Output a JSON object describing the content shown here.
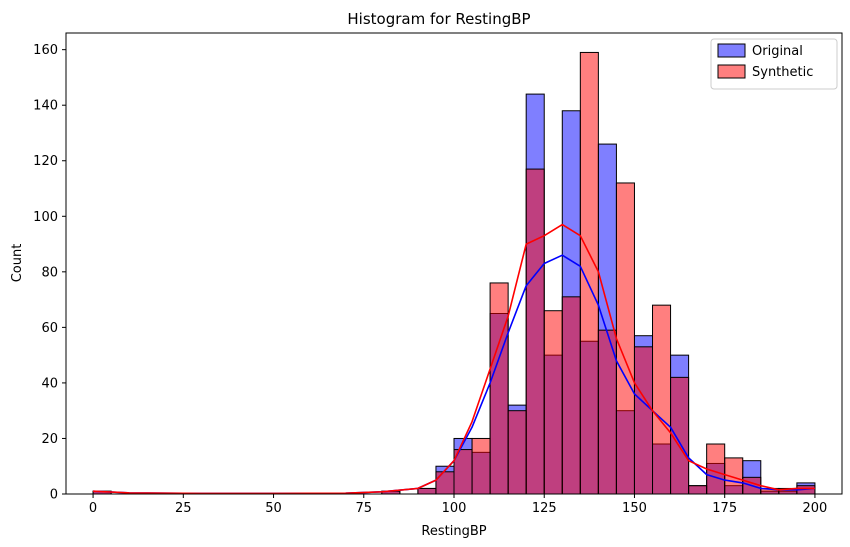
{
  "chart_data": {
    "type": "bar",
    "title": "Histogram for RestingBP",
    "xlabel": "RestingBP",
    "ylabel": "Count",
    "xlim": [
      -7.5,
      207.5
    ],
    "ylim": [
      0,
      166
    ],
    "xticks": [
      0,
      25,
      50,
      75,
      100,
      125,
      150,
      175,
      200
    ],
    "yticks": [
      0,
      20,
      40,
      60,
      80,
      100,
      120,
      140,
      160
    ],
    "bin_width": 5,
    "legend_position": "top-right",
    "colors": {
      "original": "#0000ff",
      "synthetic": "#ff0000",
      "overlap": "#c0305a",
      "edge": "#000000"
    },
    "series": [
      {
        "name": "Original",
        "bins": [
          {
            "x": 0,
            "count": 1
          },
          {
            "x": 80,
            "count": 1
          },
          {
            "x": 90,
            "count": 2
          },
          {
            "x": 95,
            "count": 10
          },
          {
            "x": 100,
            "count": 20
          },
          {
            "x": 105,
            "count": 15
          },
          {
            "x": 110,
            "count": 65
          },
          {
            "x": 115,
            "count": 32
          },
          {
            "x": 120,
            "count": 144
          },
          {
            "x": 125,
            "count": 50
          },
          {
            "x": 130,
            "count": 138
          },
          {
            "x": 135,
            "count": 55
          },
          {
            "x": 140,
            "count": 126
          },
          {
            "x": 145,
            "count": 30
          },
          {
            "x": 150,
            "count": 57
          },
          {
            "x": 155,
            "count": 18
          },
          {
            "x": 160,
            "count": 50
          },
          {
            "x": 165,
            "count": 3
          },
          {
            "x": 170,
            "count": 11
          },
          {
            "x": 175,
            "count": 3
          },
          {
            "x": 180,
            "count": 12
          },
          {
            "x": 185,
            "count": 1
          },
          {
            "x": 190,
            "count": 1
          },
          {
            "x": 195,
            "count": 4
          }
        ],
        "kde": [
          [
            0,
            1
          ],
          [
            10,
            0.4
          ],
          [
            30,
            0.2
          ],
          [
            50,
            0.2
          ],
          [
            70,
            0.3
          ],
          [
            80,
            0.8
          ],
          [
            90,
            2
          ],
          [
            95,
            5
          ],
          [
            100,
            12
          ],
          [
            105,
            24
          ],
          [
            110,
            40
          ],
          [
            115,
            58
          ],
          [
            120,
            75
          ],
          [
            125,
            83
          ],
          [
            130,
            86
          ],
          [
            135,
            82
          ],
          [
            140,
            68
          ],
          [
            145,
            48
          ],
          [
            150,
            36
          ],
          [
            155,
            30
          ],
          [
            160,
            24
          ],
          [
            165,
            13
          ],
          [
            170,
            7
          ],
          [
            175,
            5
          ],
          [
            180,
            4
          ],
          [
            185,
            2
          ],
          [
            190,
            1.5
          ],
          [
            195,
            1.5
          ],
          [
            200,
            2
          ]
        ]
      },
      {
        "name": "Synthetic",
        "bins": [
          {
            "x": 0,
            "count": 1
          },
          {
            "x": 80,
            "count": 1
          },
          {
            "x": 90,
            "count": 2
          },
          {
            "x": 95,
            "count": 8
          },
          {
            "x": 100,
            "count": 16
          },
          {
            "x": 105,
            "count": 20
          },
          {
            "x": 110,
            "count": 76
          },
          {
            "x": 115,
            "count": 30
          },
          {
            "x": 120,
            "count": 117
          },
          {
            "x": 125,
            "count": 66
          },
          {
            "x": 130,
            "count": 71
          },
          {
            "x": 135,
            "count": 159
          },
          {
            "x": 140,
            "count": 59
          },
          {
            "x": 145,
            "count": 112
          },
          {
            "x": 150,
            "count": 53
          },
          {
            "x": 155,
            "count": 68
          },
          {
            "x": 160,
            "count": 42
          },
          {
            "x": 165,
            "count": 3
          },
          {
            "x": 170,
            "count": 18
          },
          {
            "x": 175,
            "count": 13
          },
          {
            "x": 180,
            "count": 6
          },
          {
            "x": 185,
            "count": 2
          },
          {
            "x": 190,
            "count": 2
          },
          {
            "x": 195,
            "count": 3
          }
        ],
        "kde": [
          [
            0,
            1
          ],
          [
            10,
            0.4
          ],
          [
            30,
            0.2
          ],
          [
            50,
            0.2
          ],
          [
            70,
            0.3
          ],
          [
            80,
            0.8
          ],
          [
            90,
            2
          ],
          [
            95,
            5
          ],
          [
            100,
            12
          ],
          [
            105,
            26
          ],
          [
            110,
            45
          ],
          [
            115,
            64
          ],
          [
            120,
            90
          ],
          [
            125,
            93
          ],
          [
            130,
            97
          ],
          [
            135,
            93
          ],
          [
            140,
            80
          ],
          [
            145,
            56
          ],
          [
            150,
            40
          ],
          [
            155,
            30
          ],
          [
            160,
            22
          ],
          [
            165,
            12
          ],
          [
            170,
            9
          ],
          [
            175,
            7
          ],
          [
            180,
            5
          ],
          [
            185,
            3
          ],
          [
            190,
            1.5
          ],
          [
            195,
            2
          ],
          [
            200,
            2
          ]
        ]
      }
    ]
  }
}
